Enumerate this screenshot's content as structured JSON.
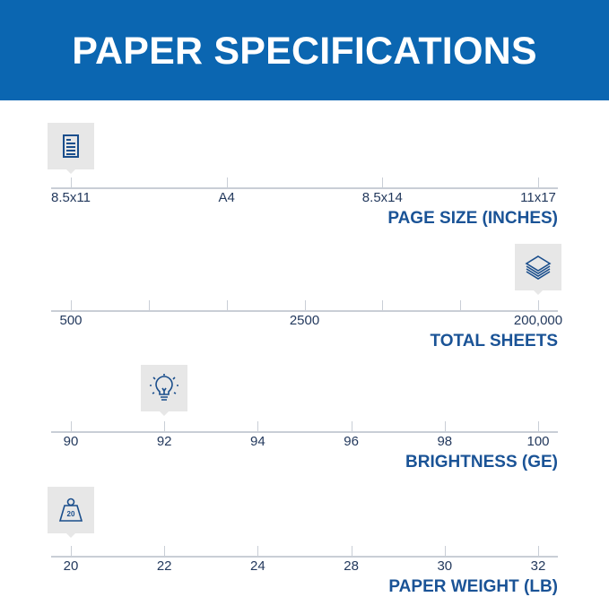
{
  "header": {
    "title": "PAPER SPECIFICATIONS",
    "background": "#0b66b1"
  },
  "scales": [
    {
      "title": "PAGE SIZE (INCHES)",
      "icon": "document-icon",
      "ticks": [
        "8.5x11",
        "A4",
        "8.5x14",
        "11x17"
      ],
      "selected": "8.5x11"
    },
    {
      "title": "TOTAL SHEETS",
      "icon": "paper-stack-icon",
      "ticks": [
        "500",
        "",
        "",
        "2500",
        "",
        "",
        "200,000"
      ],
      "selected": "200,000"
    },
    {
      "title": "BRIGHTNESS (GE)",
      "icon": "light-bulb-icon",
      "ticks": [
        "90",
        "92",
        "94",
        "96",
        "98",
        "100"
      ],
      "selected": "92"
    },
    {
      "title": "PAPER WEIGHT (LB)",
      "icon": "weight-icon",
      "icon_text": "20",
      "ticks": [
        "20",
        "22",
        "24",
        "28",
        "30",
        "32"
      ],
      "selected": "20"
    }
  ]
}
